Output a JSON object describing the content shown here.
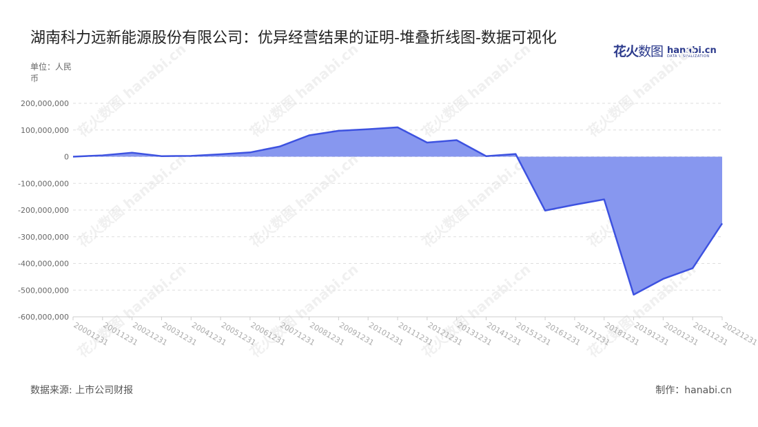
{
  "header": {
    "title": "湖南科力远新能源股份有限公司：优异经营结果的证明-堆叠折线图-数据可视化",
    "unit": "单位：人民币"
  },
  "logo": {
    "cn_bold": "花火",
    "cn_thin": "数图",
    "en": "hanabi.cn",
    "sub": "DATA VISUALIZATION"
  },
  "watermark": "花火数图 hanabi.cn",
  "footer": {
    "source": "数据来源: 上市公司财报",
    "credit": "制作：hanabi.cn"
  },
  "colors": {
    "line": "#3d52e0",
    "fill": "#8797ef",
    "grid": "#dddddd",
    "axis": "#cccccc"
  },
  "chart_data": {
    "type": "area",
    "x": [
      "20001231",
      "20011231",
      "20021231",
      "20031231",
      "20041231",
      "20051231",
      "20061231",
      "20071231",
      "20081231",
      "20091231",
      "20101231",
      "20111231",
      "20121231",
      "20131231",
      "20141231",
      "20151231",
      "20161231",
      "20171231",
      "20181231",
      "20191231",
      "20201231",
      "20211231",
      "20221231"
    ],
    "series": [
      {
        "values": [
          0,
          5000000,
          15000000,
          2000000,
          3000000,
          9000000,
          16000000,
          38000000,
          80000000,
          97000000,
          103000000,
          110000000,
          53000000,
          62000000,
          2000000,
          10000000,
          -202000000,
          -180000000,
          -160000000,
          -517000000,
          -458000000,
          -418000000,
          -250000000
        ]
      }
    ],
    "ylim": [
      -600000000,
      200000000
    ],
    "yticks": [
      "200,000,000",
      "100,000,000",
      "0",
      "-100,000,000",
      "-200,000,000",
      "-300,000,000",
      "-400,000,000",
      "-500,000,000",
      "-600,000,000"
    ],
    "ytick_values": [
      200000000,
      100000000,
      0,
      -100000000,
      -200000000,
      -300000000,
      -400000000,
      -500000000,
      -600000000
    ],
    "grid": "horizontal dashed",
    "legend": "none"
  }
}
